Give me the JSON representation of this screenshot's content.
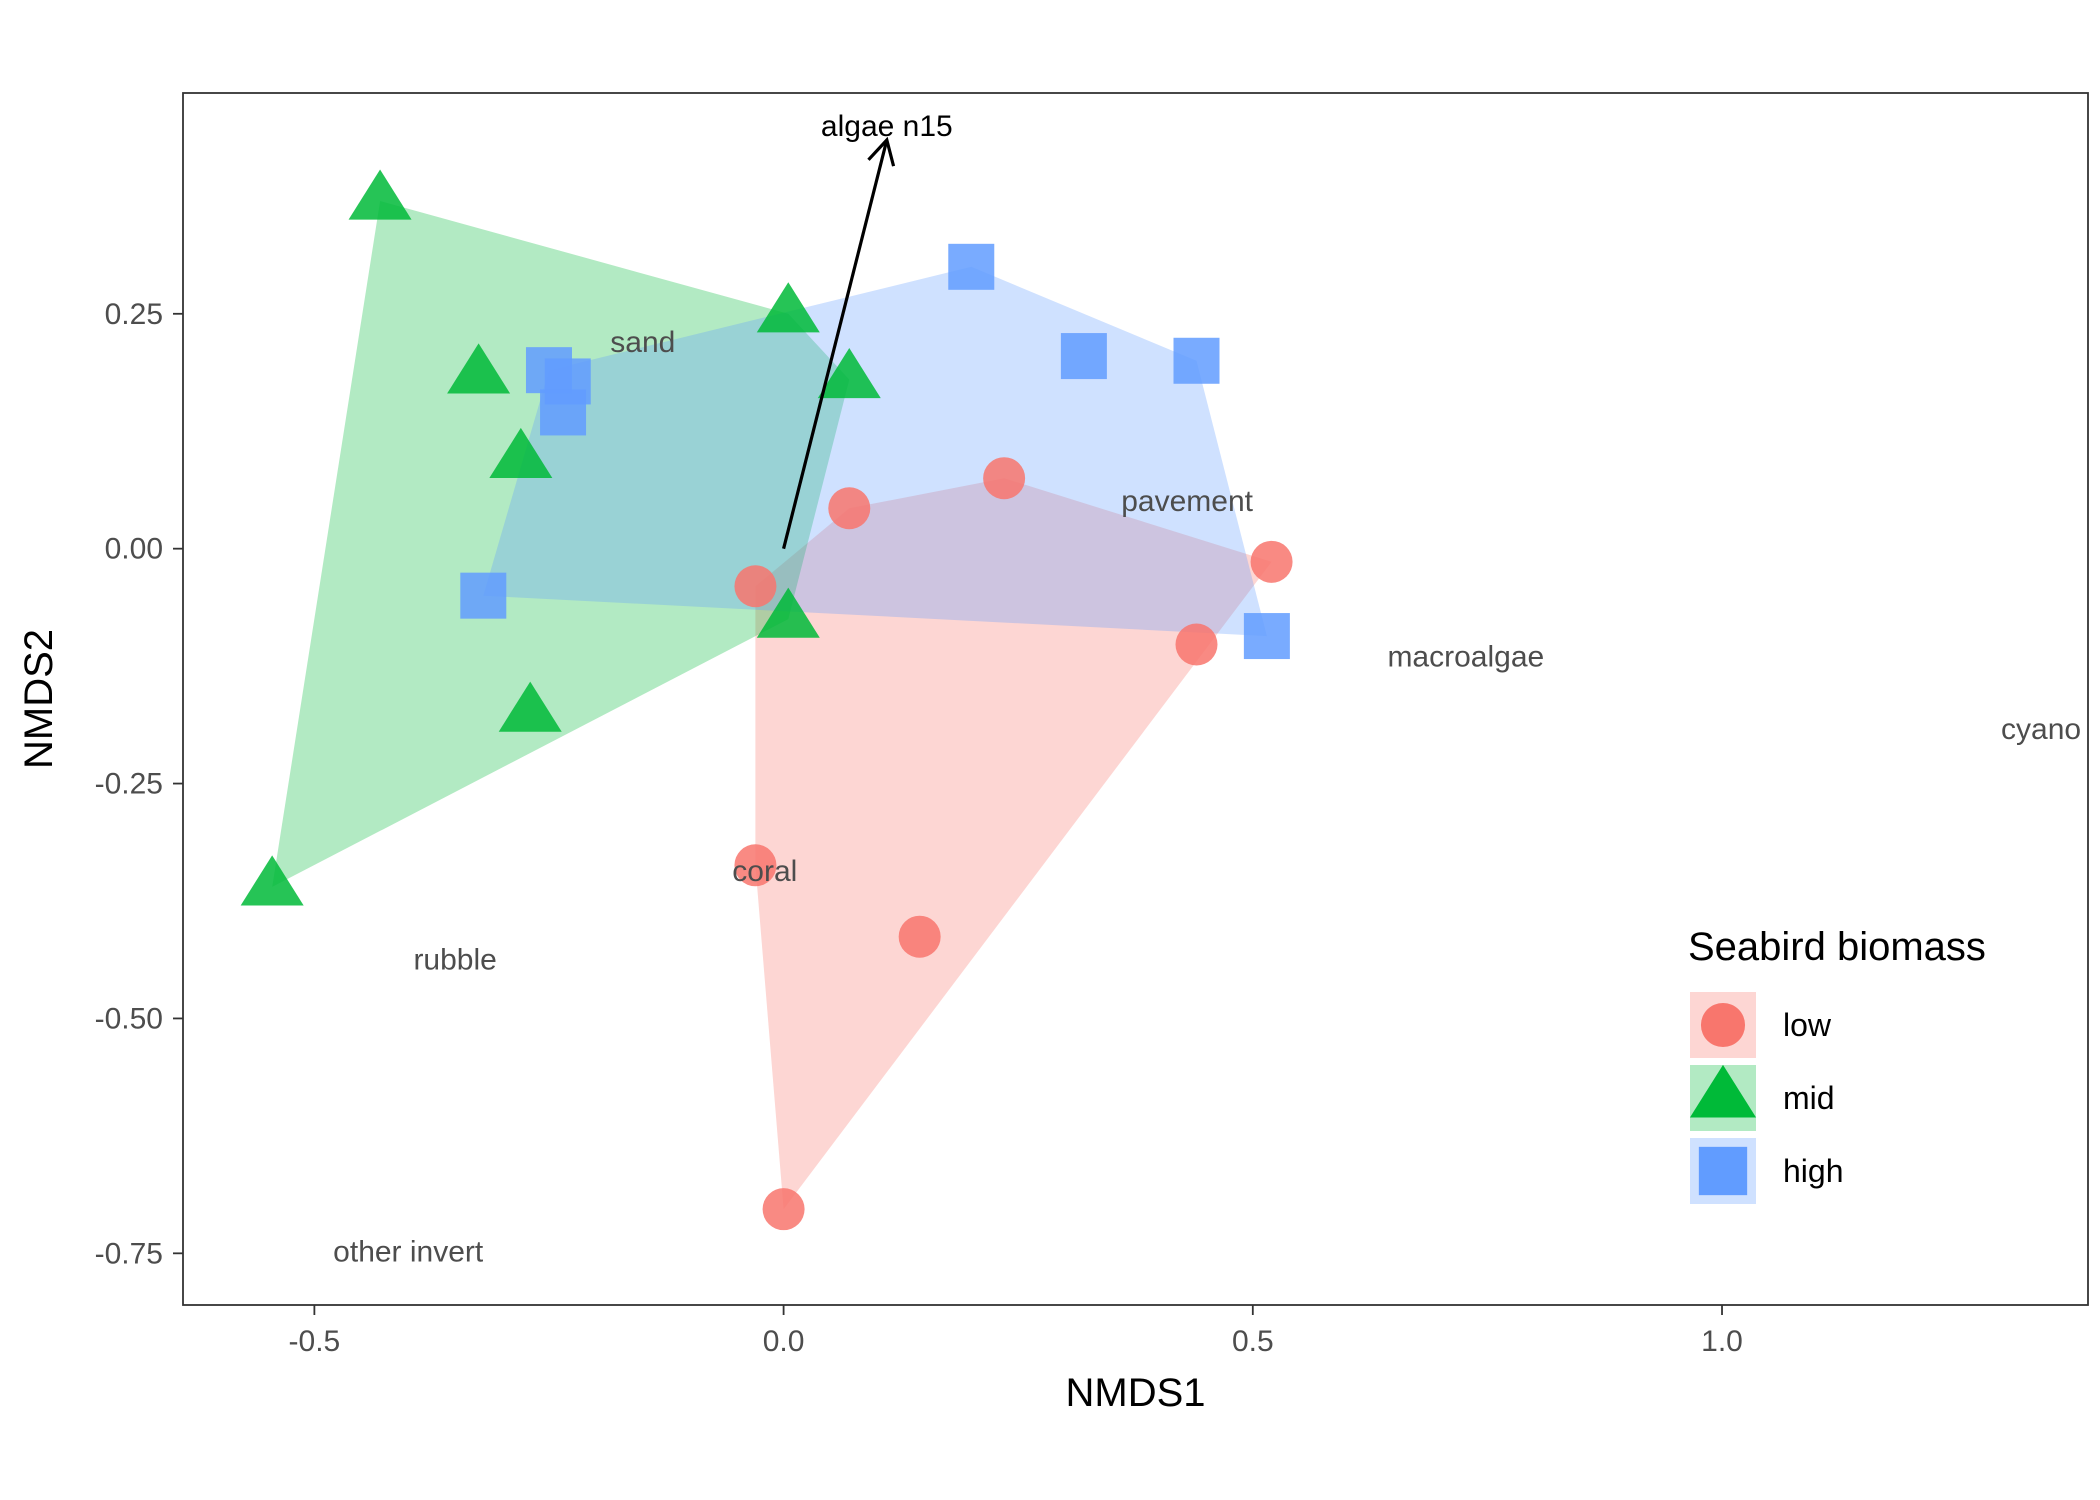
{
  "chart_data": {
    "type": "scatter",
    "xlabel": "NMDS1",
    "ylabel": "NMDS2",
    "xlim": [
      -0.64,
      1.39
    ],
    "ylim": [
      -0.805,
      0.485
    ],
    "x_ticks": [
      -0.5,
      0.0,
      0.5,
      1.0
    ],
    "x_tick_labels": [
      "-0.5",
      "0.0",
      "0.5",
      "1.0"
    ],
    "y_ticks": [
      -0.75,
      -0.5,
      -0.25,
      0.0,
      0.25
    ],
    "y_tick_labels": [
      "-0.75",
      "-0.50",
      "-0.25",
      "0.00",
      "0.25"
    ],
    "grid": false,
    "legend": {
      "title": "Seabird biomass",
      "position": "right"
    },
    "series": [
      {
        "name": "low",
        "shape": "circle",
        "color": "#F8766D",
        "points": [
          [
            0.07,
            0.043
          ],
          [
            0.235,
            0.075
          ],
          [
            0.52,
            -0.014
          ],
          [
            0.44,
            -0.102
          ],
          [
            -0.03,
            -0.04
          ],
          [
            -0.03,
            -0.337
          ],
          [
            0.145,
            -0.413
          ],
          [
            0.0,
            -0.703
          ]
        ]
      },
      {
        "name": "mid",
        "shape": "triangle",
        "color": "#00BA38",
        "points": [
          [
            -0.43,
            0.37
          ],
          [
            0.005,
            0.25
          ],
          [
            0.07,
            0.18
          ],
          [
            -0.325,
            0.185
          ],
          [
            -0.28,
            0.095
          ],
          [
            0.005,
            -0.075
          ],
          [
            -0.27,
            -0.175
          ],
          [
            -0.545,
            -0.36
          ]
        ]
      },
      {
        "name": "high",
        "shape": "square",
        "color": "#619CFF",
        "points": [
          [
            0.2,
            0.3
          ],
          [
            0.32,
            0.205
          ],
          [
            0.44,
            0.2
          ],
          [
            -0.25,
            0.19
          ],
          [
            -0.23,
            0.178
          ],
          [
            -0.235,
            0.145
          ],
          [
            -0.32,
            -0.05
          ],
          [
            0.515,
            -0.093
          ]
        ]
      }
    ],
    "species_labels": [
      {
        "text": "sand",
        "x": -0.15,
        "y": 0.22
      },
      {
        "text": "pavement",
        "x": 0.43,
        "y": 0.051
      },
      {
        "text": "macroalgae",
        "x": 0.727,
        "y": -0.115
      },
      {
        "text": "cyano",
        "x": 1.34,
        "y": -0.192
      },
      {
        "text": "coral",
        "x": -0.02,
        "y": -0.343
      },
      {
        "text": "rubble",
        "x": -0.35,
        "y": -0.437
      },
      {
        "text": "other invert",
        "x": -0.4,
        "y": -0.748
      }
    ],
    "vectors": [
      {
        "label": "algae n15",
        "from": [
          0.0,
          0.0
        ],
        "to": [
          0.11,
          0.435
        ]
      }
    ]
  }
}
